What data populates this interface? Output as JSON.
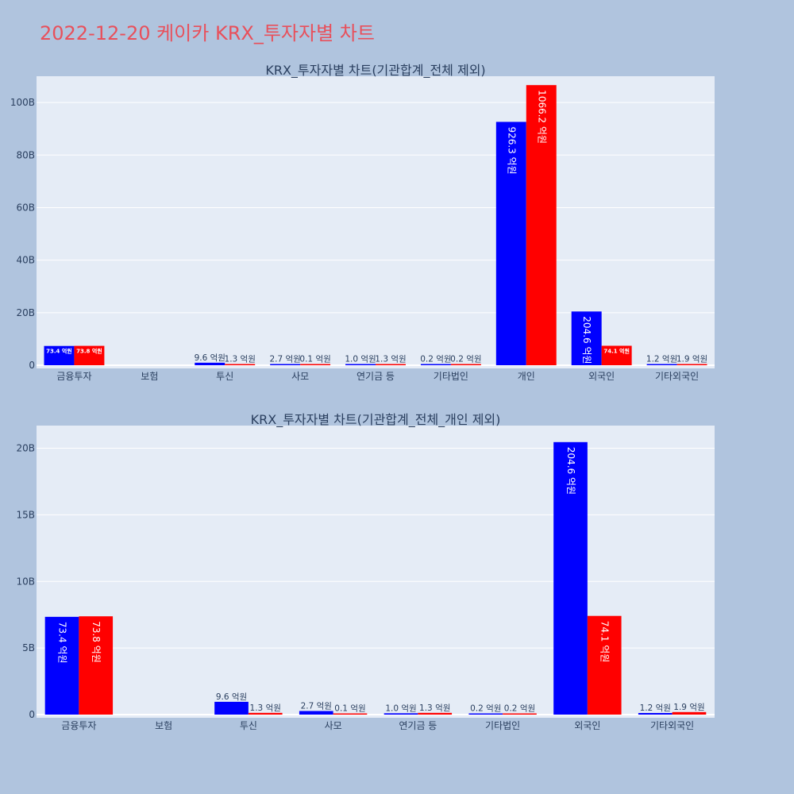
{
  "page": {
    "title": "2022-12-20 케이카 KRX_투자자별 차트"
  },
  "colors": {
    "buy": "#0000ff",
    "sell": "#ff0000",
    "plot_bg": "#e5ecf6",
    "page_bg": "#b0c4de",
    "title": "#e8505b",
    "text": "#2a3f5f"
  },
  "chart_data": [
    {
      "type": "bar",
      "title": "KRX_투자자별 차트(기관합계_전체 제외)",
      "categories": [
        "금융투자",
        "보험",
        "투신",
        "사모",
        "연기금 등",
        "기타법인",
        "개인",
        "외국인",
        "기타외국인"
      ],
      "ylim": [
        0,
        110
      ],
      "yticks": [
        0,
        20,
        40,
        60,
        80,
        100
      ],
      "ytick_labels": [
        "0",
        "20B",
        "40B",
        "60B",
        "80B",
        "100B"
      ],
      "grid": true,
      "series": [
        {
          "values": [
            7.34,
            0,
            0.96,
            0.27,
            0.1,
            0.02,
            92.63,
            20.46,
            0.12
          ],
          "labels": [
            "73.4 억원",
            "",
            "9.6 억원",
            "2.7 억원",
            "1.0 억원",
            "0.2 억원",
            "926.3 억원",
            "204.6 억원",
            "1.2 억원"
          ]
        },
        {
          "values": [
            7.38,
            0,
            0.13,
            0.01,
            0.13,
            0.02,
            106.62,
            7.41,
            0.19
          ],
          "labels": [
            "73.8 억원",
            "",
            "1.3 억원",
            "0.1 억원",
            "1.3 억원",
            "0.2 억원",
            "1066.2 억원",
            "74.1 억원",
            "1.9 억원"
          ]
        }
      ]
    },
    {
      "type": "bar",
      "title": "KRX_투자자별 차트(기관합계_전체_개인 제외)",
      "categories": [
        "금융투자",
        "보험",
        "투신",
        "사모",
        "연기금 등",
        "기타법인",
        "외국인",
        "기타외국인"
      ],
      "ylim": [
        0,
        21.7
      ],
      "yticks": [
        0,
        5,
        10,
        15,
        20
      ],
      "ytick_labels": [
        "0",
        "5B",
        "10B",
        "15B",
        "20B"
      ],
      "grid": true,
      "series": [
        {
          "values": [
            7.34,
            0,
            0.96,
            0.27,
            0.1,
            0.02,
            20.46,
            0.12
          ],
          "labels": [
            "73.4 억원",
            "",
            "9.6 억원",
            "2.7 억원",
            "1.0 억원",
            "0.2 억원",
            "204.6 억원",
            "1.2 억원"
          ]
        },
        {
          "values": [
            7.38,
            0,
            0.13,
            0.01,
            0.13,
            0.02,
            7.41,
            0.19
          ],
          "labels": [
            "73.8 억원",
            "",
            "1.3 억원",
            "0.1 억원",
            "1.3 억원",
            "0.2 억원",
            "74.1 억원",
            "1.9 억원"
          ]
        }
      ]
    }
  ]
}
